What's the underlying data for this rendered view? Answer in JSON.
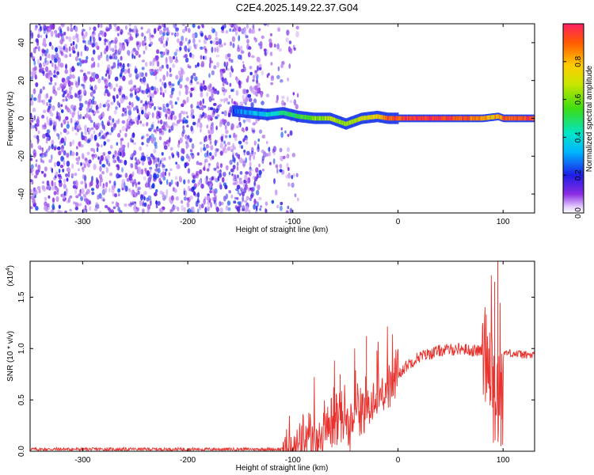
{
  "page_title": "C2E4.2025.149.22.37.G04",
  "chart_data": [
    {
      "type": "heatmap",
      "title": "",
      "xlabel": "Height of straight line (km)",
      "ylabel": "Frequency (Hz)",
      "xlim": [
        -350,
        130
      ],
      "ylim": [
        -50,
        50
      ],
      "xticks": [
        -300,
        -200,
        -100,
        0,
        100
      ],
      "yticks": [
        -40,
        -20,
        0,
        20,
        40
      ],
      "colorbar": {
        "label": "Normalized spectral amplitude",
        "range": [
          0,
          1
        ],
        "ticks": [
          0.0,
          0.2,
          0.4,
          0.6,
          0.8
        ],
        "tick_labels": [
          "0.0",
          "0.2",
          "0.4",
          "0.6",
          "0.8"
        ]
      },
      "regions": [
        {
          "description": "scattered low-amplitude noise",
          "x": [
            -350,
            -95
          ],
          "y": [
            -50,
            50
          ],
          "amplitude": [
            0.05,
            0.25
          ]
        },
        {
          "description": "signal band",
          "x": [
            -130,
            130
          ],
          "y": [
            -5,
            5
          ],
          "amplitude": [
            0.3,
            1.0
          ]
        }
      ],
      "signal_track": [
        {
          "x": -158,
          "y": 4,
          "amp": 0.25
        },
        {
          "x": -125,
          "y": 2,
          "amp": 0.4
        },
        {
          "x": -110,
          "y": 3,
          "amp": 0.45
        },
        {
          "x": -95,
          "y": 1,
          "amp": 0.5
        },
        {
          "x": -80,
          "y": 0,
          "amp": 0.6
        },
        {
          "x": -65,
          "y": 0,
          "amp": 0.65
        },
        {
          "x": -50,
          "y": -3,
          "amp": 0.65
        },
        {
          "x": -35,
          "y": 0,
          "amp": 0.7
        },
        {
          "x": -20,
          "y": 1,
          "amp": 0.75
        },
        {
          "x": -10,
          "y": 0,
          "amp": 0.9
        },
        {
          "x": 10,
          "y": 0,
          "amp": 0.95
        },
        {
          "x": 50,
          "y": 0,
          "amp": 0.95
        },
        {
          "x": 80,
          "y": 0,
          "amp": 0.85
        },
        {
          "x": 95,
          "y": 1,
          "amp": 0.8
        },
        {
          "x": 100,
          "y": 0,
          "amp": 0.9
        },
        {
          "x": 130,
          "y": 0,
          "amp": 0.95
        }
      ]
    },
    {
      "type": "line",
      "title": "",
      "xlabel": "Height of straight line (km)",
      "ylabel": "SNR (10 * v/v)",
      "y_multiplier_label": "(x10",
      "y_multiplier_exp": "4",
      "y_multiplier_close": ")",
      "xlim": [
        -350,
        130
      ],
      "ylim": [
        0,
        1.85
      ],
      "xticks": [
        -300,
        -200,
        -100,
        0,
        100
      ],
      "yticks": [
        0.0,
        0.5,
        1.0,
        1.5
      ],
      "ytick_labels": [
        "0.0",
        "0.5",
        "1.0",
        "1.5"
      ],
      "series": [
        {
          "color": "#e8322e",
          "x": [
            -350,
            -300,
            -200,
            -110,
            -100,
            -90,
            -80,
            -70,
            -60,
            -50,
            -40,
            -30,
            -20,
            -10,
            0,
            10,
            20,
            30,
            40,
            50,
            60,
            70,
            80,
            85,
            90,
            95,
            100,
            105,
            110,
            120,
            130
          ],
          "y": [
            0.02,
            0.02,
            0.02,
            0.02,
            0.03,
            0.05,
            0.1,
            0.2,
            0.28,
            0.32,
            0.38,
            0.45,
            0.55,
            0.65,
            0.75,
            0.85,
            0.92,
            0.95,
            0.98,
            0.99,
            1.0,
            0.98,
            0.98,
            0.97,
            0.9,
            0.5,
            0.95,
            0.96,
            0.95,
            0.94,
            0.93
          ]
        }
      ],
      "spikes": [
        {
          "x": -30,
          "y": 1.12
        },
        {
          "x": -20,
          "y": 0.98
        },
        {
          "x": -10,
          "y": 0.9
        },
        {
          "x": -55,
          "y": 0.75
        },
        {
          "x": 95,
          "y": 1.85
        },
        {
          "x": 92,
          "y": 1.65
        },
        {
          "x": 98,
          "y": 0.05
        }
      ]
    }
  ]
}
